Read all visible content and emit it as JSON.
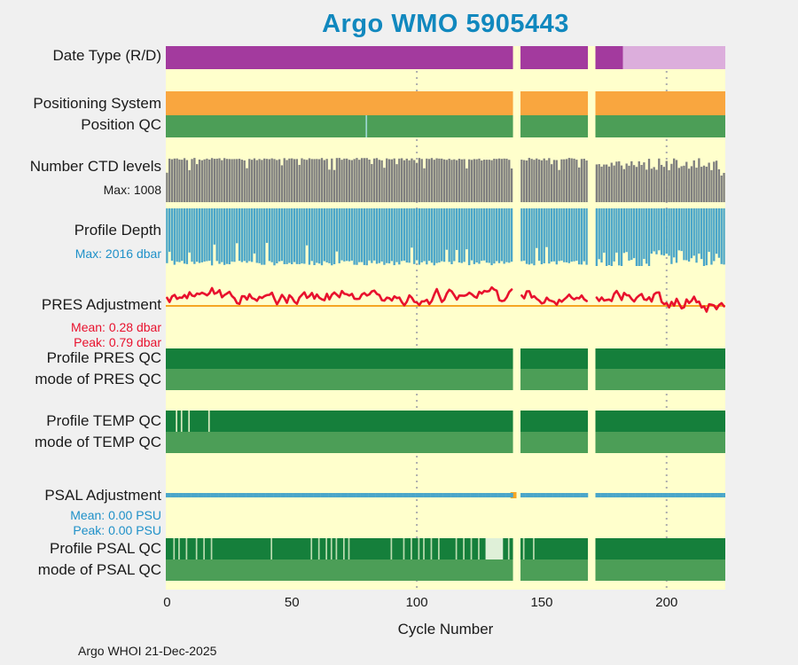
{
  "title": "Argo WMO 5905443",
  "x_axis_label": "Cycle Number",
  "footer": "Argo WHOI 21-Dec-2025",
  "colors": {
    "title": "#1188BE",
    "page_bg": "#F0F0F0",
    "plot_bg": "#FFFFCC",
    "label_text": "#1A1A1A",
    "sub_red": "#E8112D",
    "sub_blue": "#1E90C8",
    "gridline": "#ADADAD"
  },
  "left_labels": [
    {
      "text": "Date Type (R/D)",
      "style": "main"
    },
    {
      "text": "Positioning System",
      "style": "main"
    },
    {
      "text": "Position QC",
      "style": "main"
    },
    {
      "text": "Number CTD levels",
      "style": "main"
    },
    {
      "text": "Max: 1008",
      "style": "sub"
    },
    {
      "text": "Profile Depth",
      "style": "main"
    },
    {
      "text": "Max: 2016 dbar",
      "style": "sub-blue"
    },
    {
      "text": "PRES Adjustment",
      "style": "main"
    },
    {
      "text": "Mean: 0.28 dbar",
      "style": "sub-red"
    },
    {
      "text": "Peak: 0.79 dbar",
      "style": "sub-red"
    },
    {
      "text": "Profile PRES QC",
      "style": "main"
    },
    {
      "text": "mode of PRES QC",
      "style": "main"
    },
    {
      "text": "Profile TEMP QC",
      "style": "main"
    },
    {
      "text": "mode of TEMP QC",
      "style": "main"
    },
    {
      "text": "PSAL Adjustment",
      "style": "main"
    },
    {
      "text": "Mean: 0.00 PSU",
      "style": "sub-blue"
    },
    {
      "text": "Peak: 0.00 PSU",
      "style": "sub-blue"
    },
    {
      "text": "Profile PSAL QC",
      "style": "main"
    },
    {
      "text": "mode of PSAL QC",
      "style": "main"
    }
  ],
  "chart_data": {
    "type": "multi-track status strip chart",
    "title": "Argo WMO 5905443",
    "xlabel": "Cycle Number",
    "x_range": [
      0,
      223
    ],
    "x_ticks": [
      0,
      50,
      100,
      150,
      200
    ],
    "dotted_gridlines_x": [
      100,
      200
    ],
    "missing_cycle_ranges": [
      [
        139,
        141
      ],
      [
        169,
        171
      ]
    ],
    "plot_background": "#FFFFCC",
    "tracks": [
      {
        "id": "date_type",
        "label": "Date Type (R/D)",
        "kind": "strip",
        "segments": [
          {
            "from": 0,
            "to": 182,
            "color": "#A33A9E",
            "meaning": "R"
          },
          {
            "from": 183,
            "to": 223,
            "color": "#DCAEDC",
            "meaning": "D"
          }
        ]
      },
      {
        "id": "positioning_system",
        "label": "Positioning System",
        "kind": "strip",
        "segments": [
          {
            "from": 0,
            "to": 223,
            "color": "#F9A63F"
          }
        ]
      },
      {
        "id": "position_qc",
        "label": "Position QC",
        "kind": "strip",
        "segments": [
          {
            "from": 0,
            "to": 223,
            "color": "#4C9E57"
          }
        ],
        "ticks": {
          "cycles": [
            80
          ],
          "color": "#9CD6D2"
        }
      },
      {
        "id": "ctd_levels",
        "label": "Number CTD levels",
        "kind": "bars-up",
        "color": "#7F7F7F",
        "max_value": 1008,
        "typical_value": 985,
        "late_variance_after": 168
      },
      {
        "id": "profile_depth",
        "label": "Profile Depth",
        "kind": "bars-down",
        "color": "#4BA6C9",
        "max_value_dbar": 2016,
        "typical_value_dbar": 1990,
        "late_variance_after": 168
      },
      {
        "id": "pres_adjustment",
        "label": "PRES Adjustment",
        "kind": "line",
        "color": "#E8112D",
        "baseline_color": "#F5A623",
        "mean_dbar": 0.28,
        "peak_dbar": 0.79
      },
      {
        "id": "profile_pres_qc",
        "label": "Profile PRES QC",
        "kind": "strip",
        "segments": [
          {
            "from": 0,
            "to": 223,
            "color": "#157F3B"
          }
        ]
      },
      {
        "id": "mode_pres_qc",
        "label": "mode of PRES QC",
        "kind": "strip",
        "segments": [
          {
            "from": 0,
            "to": 223,
            "color": "#4C9E57"
          }
        ]
      },
      {
        "id": "profile_temp_qc",
        "label": "Profile TEMP QC",
        "kind": "strip",
        "segments": [
          {
            "from": 0,
            "to": 223,
            "color": "#157F3B"
          }
        ],
        "ticks": {
          "cycles": [
            4,
            6,
            9,
            17
          ],
          "color": "#DCEDC2"
        }
      },
      {
        "id": "mode_temp_qc",
        "label": "mode of TEMP QC",
        "kind": "strip",
        "segments": [
          {
            "from": 0,
            "to": 223,
            "color": "#4C9E57"
          }
        ]
      },
      {
        "id": "psal_adjustment",
        "label": "PSAL Adjustment",
        "kind": "thin-line",
        "color": "#4BA6C9",
        "mean_psu": 0.0,
        "peak_psu": 0.0,
        "marker": {
          "cycle": 139,
          "color": "#F5A623"
        }
      },
      {
        "id": "profile_psal_qc",
        "label": "Profile PSAL QC",
        "kind": "strip",
        "segments": [
          {
            "from": 0,
            "to": 223,
            "color": "#157F3B"
          }
        ],
        "ticks": {
          "cycles": [
            3,
            5,
            8,
            12,
            15,
            18,
            42,
            58,
            61,
            64,
            66,
            68,
            71,
            73,
            90,
            95,
            98,
            101,
            103,
            106,
            109,
            116,
            119,
            122,
            125,
            137,
            143,
            147
          ],
          "color": "#BBDCB0"
        },
        "band": {
          "from": 128,
          "to": 134,
          "color": "#DFF0D8"
        }
      },
      {
        "id": "mode_psal_qc",
        "label": "mode of PSAL QC",
        "kind": "strip",
        "segments": [
          {
            "from": 0,
            "to": 223,
            "color": "#4C9E57"
          }
        ]
      }
    ]
  }
}
